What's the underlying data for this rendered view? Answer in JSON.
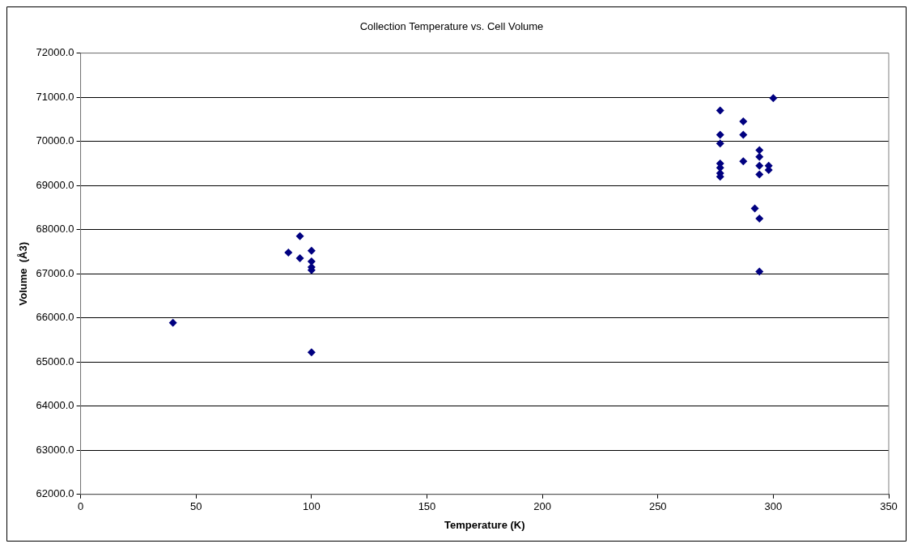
{
  "chart_data": {
    "type": "scatter",
    "title": "Collection Temperature vs. Cell Volume",
    "xlabel": "Temperature (K)",
    "ylabel": "Volume  (Å3)",
    "x": [
      40,
      90,
      95,
      95,
      100,
      100,
      100,
      100,
      100,
      277,
      277,
      277,
      277,
      277,
      277,
      277,
      287,
      287,
      287,
      292,
      294,
      294,
      294,
      294,
      294,
      294,
      298,
      298,
      300
    ],
    "values": [
      65890,
      67480,
      67850,
      67350,
      67520,
      67280,
      67150,
      67080,
      65220,
      70700,
      70150,
      69950,
      69500,
      69400,
      69280,
      69200,
      70450,
      70150,
      69550,
      68480,
      69800,
      69650,
      69450,
      69250,
      68250,
      67050,
      69450,
      69350,
      70980
    ],
    "color": "#000080",
    "marker": "diamond",
    "legend": false,
    "grid": "y",
    "xlim": [
      0,
      350
    ],
    "xticks": [
      0,
      50,
      100,
      150,
      200,
      250,
      300,
      350
    ],
    "ylim": [
      62000,
      72000
    ],
    "yticks": [
      {
        "value": 62000,
        "label": "62000.0"
      },
      {
        "value": 63000,
        "label": "63000.0"
      },
      {
        "value": 64000,
        "label": "64000.0"
      },
      {
        "value": 65000,
        "label": "65000.0"
      },
      {
        "value": 66000,
        "label": "66000.0"
      },
      {
        "value": 67000,
        "label": "67000.0"
      },
      {
        "value": 68000,
        "label": "68000.0"
      },
      {
        "value": 69000,
        "label": "69000.0"
      },
      {
        "value": 70000,
        "label": "70000.0"
      },
      {
        "value": 71000,
        "label": "71000.0"
      },
      {
        "value": 72000,
        "label": "72000.0"
      }
    ]
  }
}
